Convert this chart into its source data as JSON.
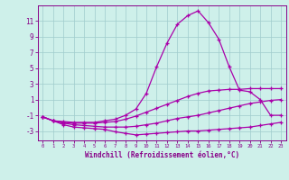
{
  "xlabel": "Windchill (Refroidissement éolien,°C)",
  "xlim": [
    -0.5,
    23.5
  ],
  "ylim": [
    -4.2,
    13.0
  ],
  "yticks": [
    -3,
    -1,
    1,
    3,
    5,
    7,
    9,
    11
  ],
  "xticks": [
    0,
    1,
    2,
    3,
    4,
    5,
    6,
    7,
    8,
    9,
    10,
    11,
    12,
    13,
    14,
    15,
    16,
    17,
    18,
    19,
    20,
    21,
    22,
    23
  ],
  "bg_color": "#cef0ea",
  "grid_color": "#a0cccc",
  "line_color": "#aa00aa",
  "curves": [
    [
      -1.2,
      -1.7,
      -2.2,
      -2.5,
      -2.6,
      -2.7,
      -2.8,
      -3.1,
      -3.3,
      -3.5,
      -3.4,
      -3.3,
      -3.2,
      -3.1,
      -3.0,
      -3.0,
      -2.9,
      -2.8,
      -2.7,
      -2.6,
      -2.5,
      -2.3,
      -2.1,
      -1.9
    ],
    [
      -1.2,
      -1.7,
      -2.0,
      -2.2,
      -2.3,
      -2.4,
      -2.5,
      -2.5,
      -2.5,
      -2.4,
      -2.2,
      -2.0,
      -1.7,
      -1.4,
      -1.2,
      -1.0,
      -0.7,
      -0.4,
      -0.1,
      0.2,
      0.5,
      0.7,
      0.9,
      1.0
    ],
    [
      -1.2,
      -1.7,
      -1.9,
      -2.0,
      -2.0,
      -2.0,
      -1.9,
      -1.8,
      -1.5,
      -1.1,
      -0.6,
      -0.1,
      0.4,
      0.9,
      1.4,
      1.8,
      2.1,
      2.2,
      2.3,
      2.3,
      2.4,
      2.4,
      2.4,
      2.4
    ],
    [
      -1.2,
      -1.7,
      -1.8,
      -1.9,
      -1.9,
      -1.9,
      -1.7,
      -1.5,
      -1.0,
      -0.2,
      1.8,
      5.2,
      8.2,
      10.6,
      11.7,
      12.3,
      10.8,
      8.7,
      5.2,
      2.2,
      2.0,
      1.0,
      -1.0,
      -1.0
    ]
  ]
}
